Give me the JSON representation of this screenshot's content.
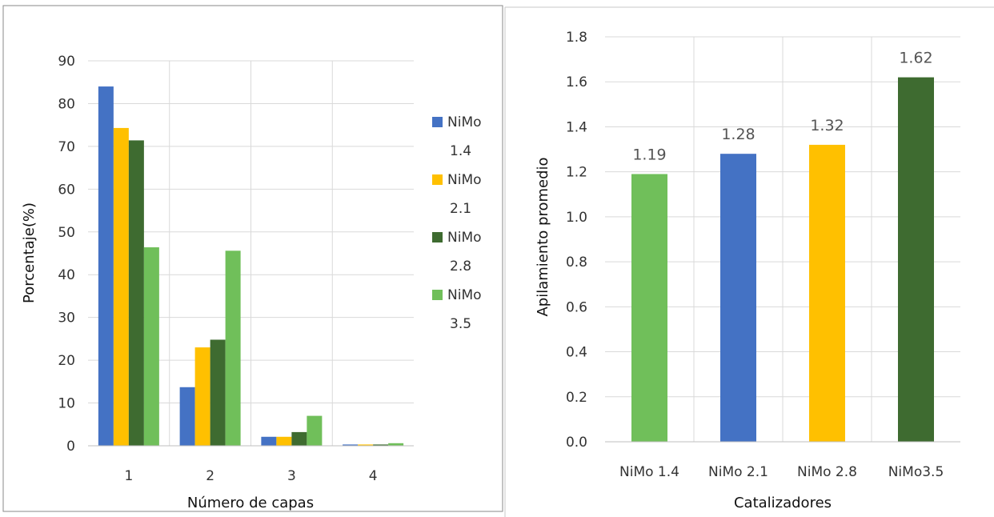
{
  "chart_data": [
    {
      "type": "bar",
      "categories": [
        "1",
        "2",
        "3",
        "4"
      ],
      "series": [
        {
          "name": "NiMo 1.4",
          "legend_lines": [
            "NiMo",
            "1.4"
          ],
          "color": "#4472C4",
          "values": [
            84.0,
            13.7,
            2.1,
            0.3
          ]
        },
        {
          "name": "NiMo 2.1",
          "legend_lines": [
            "NiMo",
            "2.1"
          ],
          "color": "#FFC000",
          "values": [
            74.3,
            23.0,
            2.1,
            0.3
          ]
        },
        {
          "name": "NiMo 2.8",
          "legend_lines": [
            "NiMo",
            "2.8"
          ],
          "color": "#3E6B30",
          "values": [
            71.4,
            24.8,
            3.2,
            0.3
          ]
        },
        {
          "name": "NiMo 3.5",
          "legend_lines": [
            "NiMo",
            "3.5"
          ],
          "color": "#70BF5A",
          "values": [
            46.4,
            45.6,
            7.0,
            0.6
          ]
        }
      ],
      "xlabel": "Número de capas",
      "ylabel": "Porcentaje(%)",
      "ylim": [
        0,
        90
      ],
      "yticks": [
        "0",
        "10",
        "20",
        "30",
        "40",
        "50",
        "60",
        "70",
        "80",
        "90"
      ],
      "grid": true,
      "legend_position": "right"
    },
    {
      "type": "bar",
      "categories": [
        "NiMo 1.4",
        "NiMo 2.1",
        "NiMo 2.8",
        "NiMo3.5"
      ],
      "values": [
        1.19,
        1.28,
        1.32,
        1.62
      ],
      "data_labels": [
        "1.19",
        "1.28",
        "1.32",
        "1.62"
      ],
      "colors": [
        "#70BF5A",
        "#4472C4",
        "#FFC000",
        "#3E6B30"
      ],
      "xlabel": "Catalizadores",
      "ylabel": "Apilamiento promedio",
      "ylim": [
        0,
        1.8
      ],
      "yticks": [
        "0.0",
        "0.2",
        "0.4",
        "0.6",
        "0.8",
        "1.0",
        "1.2",
        "1.4",
        "1.6",
        "1.8"
      ],
      "grid": true
    }
  ]
}
